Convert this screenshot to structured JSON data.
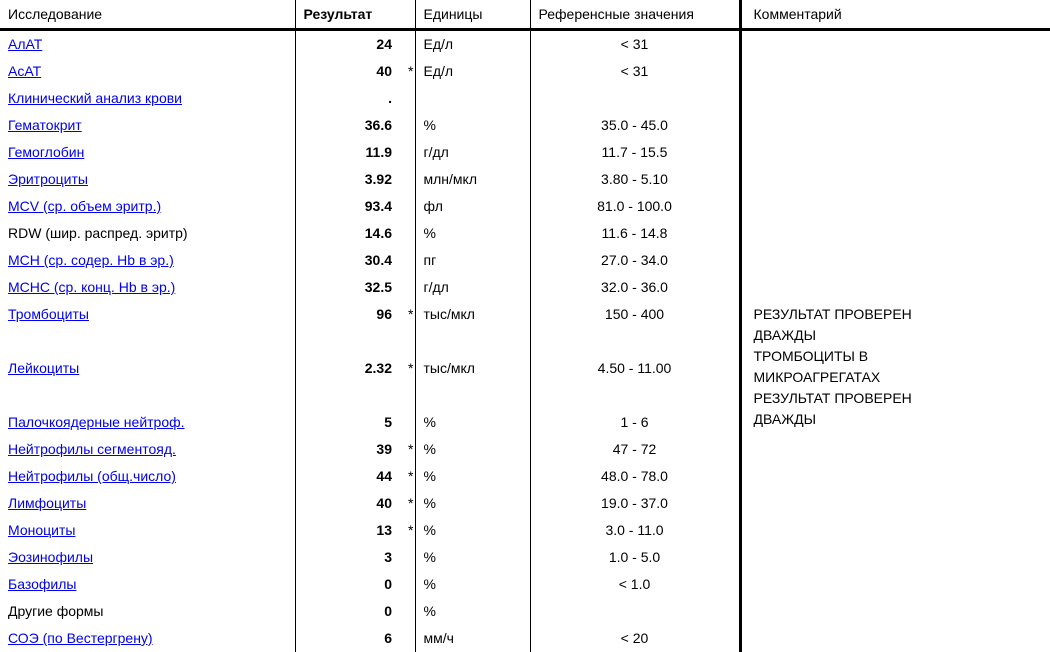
{
  "table": {
    "headers": {
      "test": "Исследование",
      "result": "Результат",
      "units": "Единицы",
      "reference": "Референсные значения",
      "comment": "Комментарий"
    },
    "rows": [
      {
        "test": "АлАТ",
        "link": true,
        "result": "24",
        "flag": "",
        "units": "Ед/л",
        "ref": "< 31",
        "gap": false
      },
      {
        "test": "АсАТ",
        "link": true,
        "result": "40",
        "flag": "*",
        "units": "Ед/л",
        "ref": "< 31",
        "gap": false
      },
      {
        "test": "Клинический анализ крови",
        "link": true,
        "result": ".",
        "flag": "",
        "units": "",
        "ref": "",
        "gap": false
      },
      {
        "test": "Гематокрит",
        "link": true,
        "result": "36.6",
        "flag": "",
        "units": "%",
        "ref": "35.0 - 45.0",
        "gap": false
      },
      {
        "test": "Гемоглобин",
        "link": true,
        "result": "11.9",
        "flag": "",
        "units": "г/дл",
        "ref": "11.7 - 15.5",
        "gap": false
      },
      {
        "test": "Эритроциты",
        "link": true,
        "result": "3.92",
        "flag": "",
        "units": "млн/мкл",
        "ref": "3.80 - 5.10",
        "gap": false
      },
      {
        "test": "MCV (ср. объем эритр.)",
        "link": true,
        "result": "93.4",
        "flag": "",
        "units": "фл",
        "ref": "81.0 - 100.0",
        "gap": false
      },
      {
        "test": "RDW (шир. распред. эритр)",
        "link": false,
        "result": "14.6",
        "flag": "",
        "units": "%",
        "ref": "11.6 - 14.8",
        "gap": false
      },
      {
        "test": "MCH (ср. содер. Hb в эр.)",
        "link": true,
        "result": "30.4",
        "flag": "",
        "units": "пг",
        "ref": "27.0 - 34.0",
        "gap": false
      },
      {
        "test": "MCHC (ср. конц. Hb в эр.)",
        "link": true,
        "result": "32.5",
        "flag": "",
        "units": "г/дл",
        "ref": "32.0 - 36.0",
        "gap": false
      },
      {
        "test": "Тромбоциты",
        "link": true,
        "result": "96",
        "flag": "*",
        "units": "тыс/мкл",
        "ref": "150 - 400",
        "gap": false,
        "comment_start": true
      },
      {
        "test": "Лейкоциты",
        "link": true,
        "result": "2.32",
        "flag": "*",
        "units": "тыс/мкл",
        "ref": "4.50 - 11.00",
        "gap": true
      },
      {
        "test": "Палочкоядерные нейтроф.",
        "link": true,
        "result": "5",
        "flag": "",
        "units": "%",
        "ref": "1 - 6",
        "gap": true
      },
      {
        "test": "Нейтрофилы сегментояд.",
        "link": true,
        "result": "39",
        "flag": "*",
        "units": "%",
        "ref": "47 - 72",
        "gap": false
      },
      {
        "test": "Нейтрофилы (общ.число)",
        "link": true,
        "result": "44",
        "flag": "*",
        "units": "%",
        "ref": "48.0 - 78.0",
        "gap": false
      },
      {
        "test": "Лимфоциты",
        "link": true,
        "result": "40",
        "flag": "*",
        "units": "%",
        "ref": "19.0 - 37.0",
        "gap": false
      },
      {
        "test": "Моноциты",
        "link": true,
        "result": "13",
        "flag": "*",
        "units": "%",
        "ref": "3.0 - 11.0",
        "gap": false
      },
      {
        "test": "Эозинофилы",
        "link": true,
        "result": "3",
        "flag": "",
        "units": "%",
        "ref": "1.0 - 5.0",
        "gap": false
      },
      {
        "test": "Базофилы",
        "link": true,
        "result": "0",
        "flag": "",
        "units": "%",
        "ref": "< 1.0",
        "gap": false
      },
      {
        "test": "Другие формы",
        "link": false,
        "result": "0",
        "flag": "",
        "units": "%",
        "ref": "",
        "gap": false
      },
      {
        "test": "СОЭ (по Вестергрену)",
        "link": true,
        "result": "6",
        "flag": "",
        "units": "мм/ч",
        "ref": "< 20",
        "gap": false
      }
    ],
    "comment_lines": [
      "РЕЗУЛЬТАТ ПРОВЕРЕН",
      "ДВАЖДЫ",
      "ТРОМБОЦИТЫ В",
      "МИКРОАГРЕГАТАХ",
      "РЕЗУЛЬТАТ ПРОВЕРЕН",
      "ДВАЖДЫ"
    ],
    "comment_start_index": 10,
    "colors": {
      "link": "#0000ee",
      "text": "#000000",
      "border": "#000000",
      "background": "#ffffff"
    }
  }
}
